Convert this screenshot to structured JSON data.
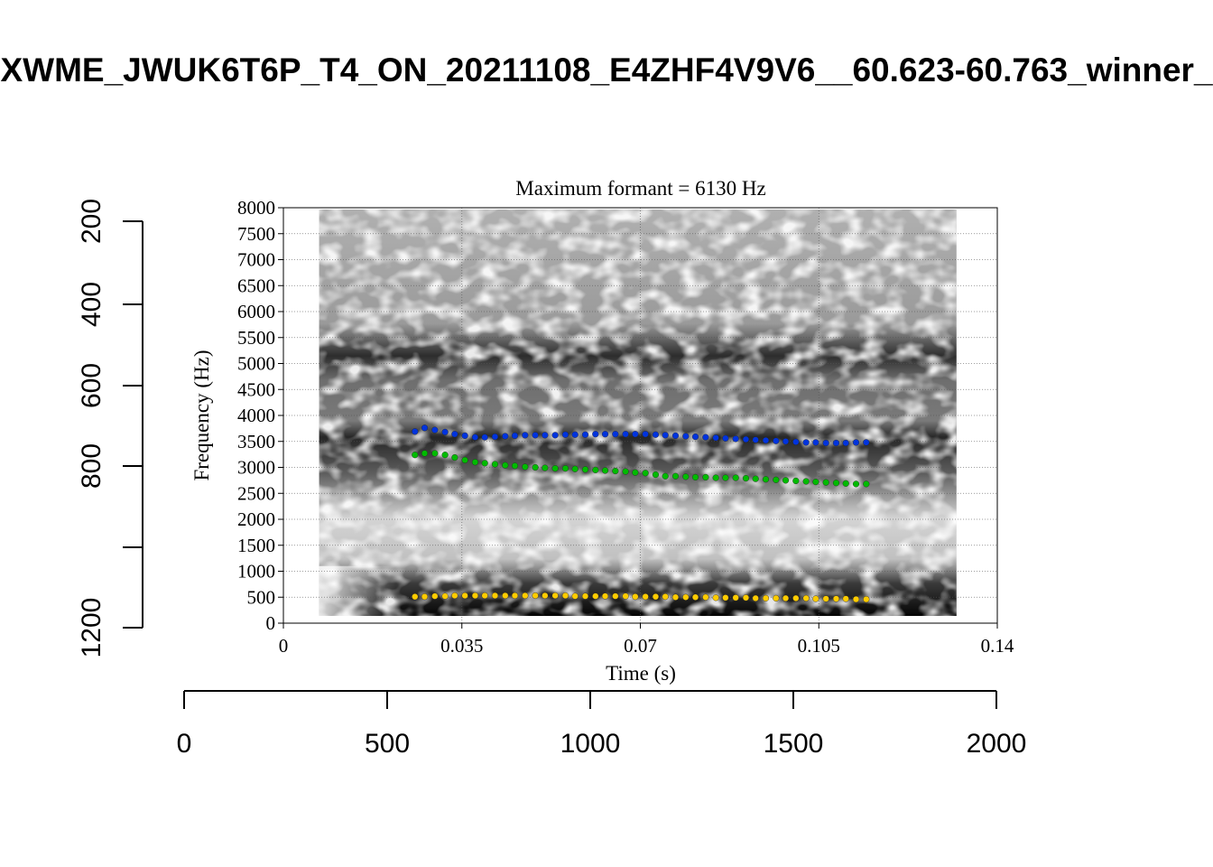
{
  "figure": {
    "title": "XWME_JWUK6T6P_T4_ON_20211108_E4ZHF4V9V6__60.623-60.763_winner_"
  },
  "outer_axes": {
    "bottom": {
      "ticks": [
        "0",
        "500",
        "1000",
        "1500",
        "2000"
      ]
    },
    "left": {
      "ticks": [
        "200",
        "400",
        "600",
        "800",
        "1200"
      ],
      "values": [
        200,
        400,
        600,
        800,
        1200
      ]
    }
  },
  "chart_data": {
    "type": "scatter",
    "title": "Maximum formant = 6130 Hz",
    "xlabel": "Time (s)",
    "ylabel": "Frequency (Hz)",
    "xlim": [
      0,
      0.14
    ],
    "ylim": [
      0,
      8000
    ],
    "x_ticks": [
      "0",
      "0.035",
      "0.07",
      "0.105",
      "0.14"
    ],
    "y_ticks": [
      "0",
      "500",
      "1000",
      "1500",
      "2000",
      "2500",
      "3000",
      "3500",
      "4000",
      "4500",
      "5000",
      "5500",
      "6000",
      "6500",
      "7000",
      "7500",
      "8000"
    ],
    "grid": true,
    "background": "spectrogram (grayscale)",
    "spectrogram_extent": {
      "t_start": 0.007,
      "t_end": 0.132
    },
    "series": [
      {
        "color": "#0033dd",
        "x": [
          0.0258,
          0.0277,
          0.0297,
          0.0317,
          0.0336,
          0.0356,
          0.0376,
          0.0395,
          0.0415,
          0.0435,
          0.0454,
          0.0474,
          0.0494,
          0.0513,
          0.0533,
          0.0553,
          0.0572,
          0.0592,
          0.0612,
          0.0631,
          0.0651,
          0.0671,
          0.069,
          0.071,
          0.073,
          0.0749,
          0.0769,
          0.0789,
          0.0808,
          0.0828,
          0.0848,
          0.0867,
          0.0887,
          0.0907,
          0.0926,
          0.0946,
          0.0966,
          0.0985,
          0.1005,
          0.1025,
          0.1044,
          0.1064,
          0.1084,
          0.1103,
          0.1123,
          0.1143
        ],
        "y": [
          3690,
          3760,
          3720,
          3680,
          3640,
          3610,
          3580,
          3580,
          3590,
          3600,
          3610,
          3620,
          3620,
          3620,
          3620,
          3630,
          3630,
          3630,
          3640,
          3640,
          3640,
          3640,
          3640,
          3640,
          3630,
          3620,
          3610,
          3600,
          3590,
          3580,
          3570,
          3560,
          3550,
          3540,
          3530,
          3520,
          3510,
          3500,
          3490,
          3480,
          3480,
          3470,
          3470,
          3470,
          3480,
          3480
        ]
      },
      {
        "color": "#00bb00",
        "x": [
          0.0258,
          0.0277,
          0.0297,
          0.0317,
          0.0336,
          0.0356,
          0.0376,
          0.0395,
          0.0415,
          0.0435,
          0.0454,
          0.0474,
          0.0494,
          0.0513,
          0.0533,
          0.0553,
          0.0572,
          0.0592,
          0.0612,
          0.0631,
          0.0651,
          0.0671,
          0.069,
          0.071,
          0.073,
          0.0749,
          0.0769,
          0.0789,
          0.0808,
          0.0828,
          0.0848,
          0.0867,
          0.0887,
          0.0907,
          0.0926,
          0.0946,
          0.0966,
          0.0985,
          0.1005,
          0.1025,
          0.1044,
          0.1064,
          0.1084,
          0.1103,
          0.1123,
          0.1143
        ],
        "y": [
          3240,
          3270,
          3270,
          3240,
          3190,
          3140,
          3100,
          3080,
          3060,
          3040,
          3030,
          3010,
          3000,
          2990,
          2980,
          2980,
          2970,
          2960,
          2950,
          2940,
          2930,
          2920,
          2900,
          2890,
          2860,
          2830,
          2830,
          2820,
          2810,
          2810,
          2800,
          2800,
          2800,
          2790,
          2780,
          2770,
          2760,
          2750,
          2740,
          2730,
          2720,
          2710,
          2700,
          2690,
          2680,
          2680
        ]
      },
      {
        "color": "#ffcc00",
        "x": [
          0.0258,
          0.0277,
          0.0297,
          0.0317,
          0.0336,
          0.0356,
          0.0376,
          0.0395,
          0.0415,
          0.0435,
          0.0454,
          0.0474,
          0.0494,
          0.0513,
          0.0533,
          0.0553,
          0.0572,
          0.0592,
          0.0612,
          0.0631,
          0.0651,
          0.0671,
          0.069,
          0.071,
          0.073,
          0.0749,
          0.0769,
          0.0789,
          0.0808,
          0.0828,
          0.0848,
          0.0867,
          0.0887,
          0.0907,
          0.0926,
          0.0946,
          0.0966,
          0.0985,
          0.1005,
          0.1025,
          0.1044,
          0.1064,
          0.1084,
          0.1103,
          0.1123,
          0.1143
        ],
        "y": [
          510,
          510,
          520,
          520,
          530,
          530,
          530,
          530,
          530,
          530,
          530,
          530,
          530,
          530,
          530,
          530,
          520,
          520,
          520,
          520,
          520,
          520,
          510,
          510,
          510,
          510,
          500,
          500,
          500,
          500,
          490,
          490,
          490,
          490,
          480,
          480,
          480,
          480,
          480,
          480,
          470,
          470,
          470,
          470,
          460,
          460
        ]
      }
    ]
  }
}
